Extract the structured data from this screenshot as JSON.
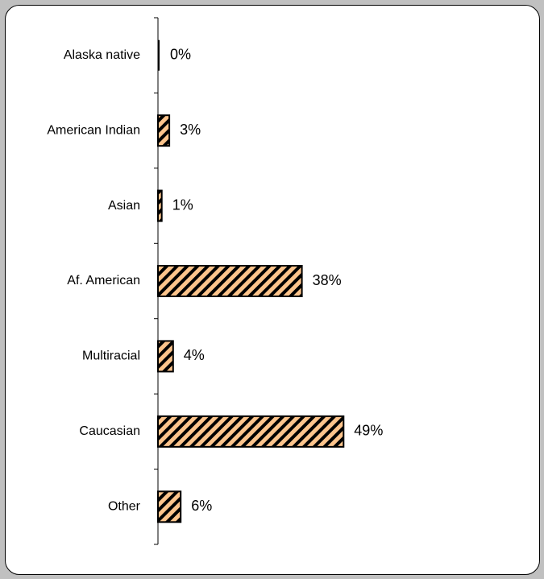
{
  "chart_data": {
    "type": "bar",
    "orientation": "horizontal",
    "categories": [
      "Alaska native",
      "American Indian",
      "Asian",
      "Af. American",
      "Multiracial",
      "Caucasian",
      "Other"
    ],
    "values": [
      0,
      3,
      1,
      38,
      4,
      49,
      6
    ],
    "value_labels": [
      "0%",
      "3%",
      "1%",
      "38%",
      "4%",
      "49%",
      "6%"
    ],
    "unit": "%",
    "xlim": [
      0,
      100
    ],
    "grid": false,
    "legend": false,
    "bar_fill": "#fcc48c",
    "bar_hatch": "#000000",
    "bar_stroke": "#000000"
  }
}
